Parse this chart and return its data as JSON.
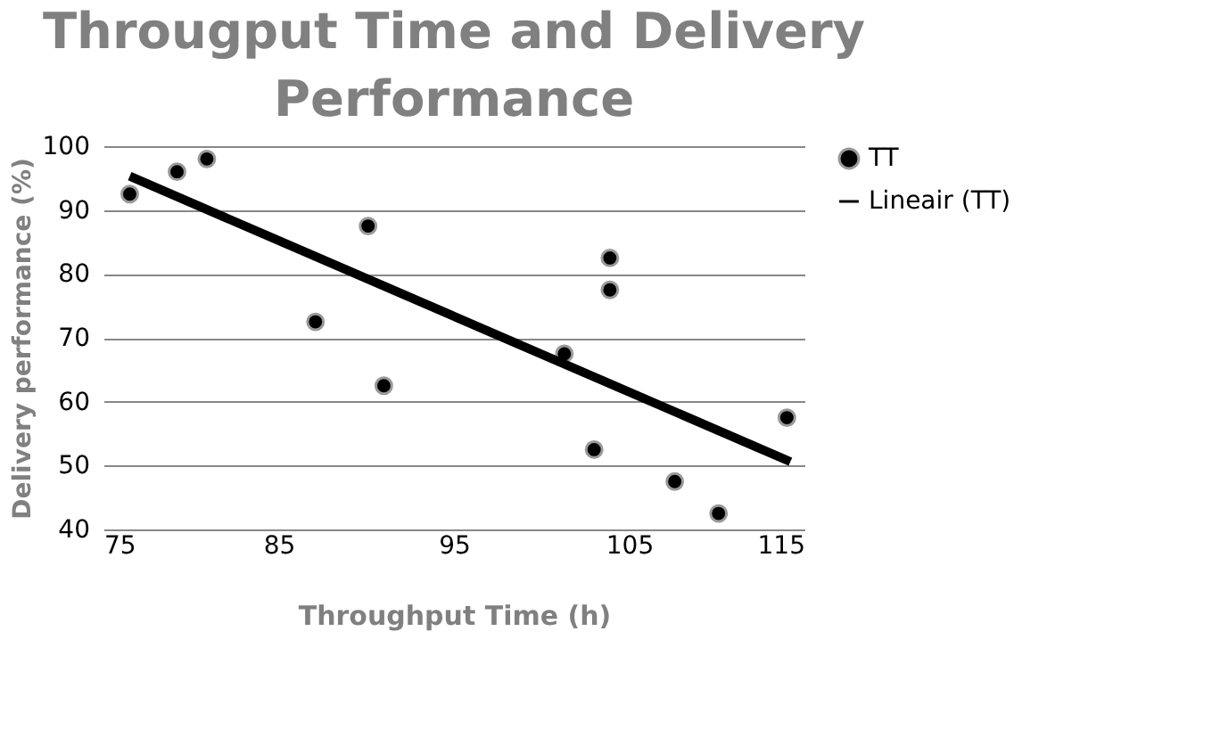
{
  "chart_data": {
    "type": "scatter",
    "title": "Througput Time and Delivery Performance",
    "xlabel": "Throughput Time (h)",
    "ylabel": "Delivery performance (%)",
    "xlim": [
      75,
      115
    ],
    "xticks": [
      75,
      85,
      95,
      105,
      115
    ],
    "ylim": [
      40,
      100
    ],
    "yticks": [
      40,
      50,
      60,
      70,
      80,
      90,
      100
    ],
    "grid": "y",
    "legend": "right",
    "series": [
      {
        "name": "TT",
        "marker": "circle",
        "color": "#000000",
        "x": [
          76.5,
          79.2,
          80.9,
          90.1,
          87.1,
          91.0,
          103.9,
          103.9,
          101.3,
          103.0,
          107.6,
          110.1,
          114.0
        ],
        "values": [
          92.5,
          96,
          98,
          87.5,
          72.5,
          62.5,
          82.5,
          77.5,
          67.5,
          52.5,
          47.5,
          42.5,
          57.5
        ]
      },
      {
        "name": "Lineair (TT)",
        "type": "line",
        "color": "#000000",
        "line_style": "solid",
        "x": [
          76.5,
          114.2
        ],
        "values": [
          95.3,
          50.6
        ]
      }
    ]
  }
}
